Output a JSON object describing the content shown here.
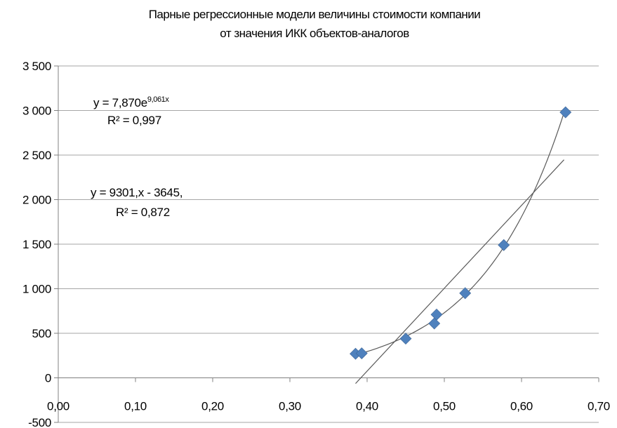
{
  "chart_data": {
    "type": "scatter",
    "title": "Парные регрессионные модели величины стоимости компании",
    "subtitle": "от значения ИКК объектов-аналогов",
    "xlim": [
      0,
      0.7
    ],
    "ylim": [
      -500,
      3500
    ],
    "x_ticks": [
      0.0,
      0.1,
      0.2,
      0.3,
      0.4,
      0.5,
      0.6,
      0.7
    ],
    "x_tick_labels": [
      "0,00",
      "0,10",
      "0,20",
      "0,30",
      "0,40",
      "0,50",
      "0,60",
      "0,70"
    ],
    "y_ticks": [
      -500,
      0,
      500,
      1000,
      1500,
      2000,
      2500,
      3000,
      3500
    ],
    "y_tick_labels": [
      "-500",
      "0",
      "500",
      "1 000",
      "1 500",
      "2 000",
      "2 500",
      "3 000",
      "3 500"
    ],
    "grid": "horizontal",
    "series": [
      {
        "marker": "diamond",
        "color": "#4f81bd",
        "x": [
          0.385,
          0.393,
          0.45,
          0.487,
          0.49,
          0.527,
          0.577,
          0.657
        ],
        "y": [
          270,
          275,
          440,
          610,
          710,
          950,
          1490,
          2980
        ]
      }
    ],
    "trendlines": [
      {
        "type": "exponential",
        "a": 7.87,
        "b": 9.061,
        "x_range": [
          0.385,
          0.657
        ],
        "color": "#595959",
        "equation_main": "y = 7,870e",
        "equation_exp": "9,061x",
        "r2_label": "R² = 0,997"
      },
      {
        "type": "linear",
        "slope": 9301,
        "intercept": -3645,
        "x_range": [
          0.385,
          0.655
        ],
        "color": "#595959",
        "equation_main": "y = 9301,x - 3645,",
        "r2_label": "R² = 0,872"
      }
    ]
  }
}
